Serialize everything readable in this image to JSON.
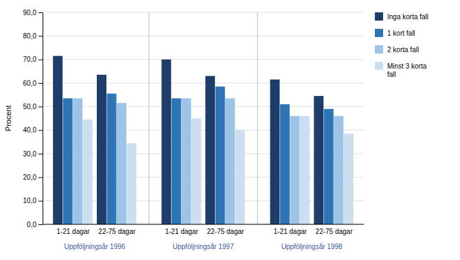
{
  "chart_data": {
    "type": "bar",
    "ylabel": "Procent",
    "categories": [
      "1-21 dagar",
      "22-75 dagar",
      "1-21 dagar",
      "22-75 dagar",
      "1-21 dagar",
      "22-75 dagar"
    ],
    "annotations": [
      "Uppföljningsår 1996",
      "Uppföljningsår 1997",
      "Uppföljningsår 1998"
    ],
    "series": [
      {
        "name": "Inga korta fall",
        "color": "#1F3D6B",
        "values": [
          71.5,
          63.5,
          70.0,
          63.0,
          61.5,
          54.5
        ]
      },
      {
        "name": "1 kort fall",
        "color": "#2E75B6",
        "values": [
          53.5,
          55.5,
          53.5,
          58.5,
          51.0,
          49.0
        ]
      },
      {
        "name": "2 korta fall",
        "color": "#9DC3E6",
        "values": [
          53.5,
          51.5,
          53.5,
          53.5,
          46.0,
          46.0
        ]
      },
      {
        "name": "Minst 3 korta\nfall",
        "color": "#CCDFF0",
        "values": [
          44.5,
          34.5,
          45.0,
          40.0,
          46.0,
          38.5
        ]
      }
    ],
    "ylim": [
      0,
      90
    ],
    "yticks": [
      {
        "value": 0,
        "label": "0,0"
      },
      {
        "value": 10,
        "label": "10,0"
      },
      {
        "value": 20,
        "label": "20,0"
      },
      {
        "value": 30,
        "label": "30,0"
      },
      {
        "value": 40,
        "label": "40,0"
      },
      {
        "value": 50,
        "label": "50,0"
      },
      {
        "value": 60,
        "label": "60,0"
      },
      {
        "value": 70,
        "label": "70,0"
      },
      {
        "value": 80,
        "label": "80,0"
      },
      {
        "value": 90,
        "label": "90,0"
      }
    ],
    "grid": true,
    "legend": "right"
  }
}
